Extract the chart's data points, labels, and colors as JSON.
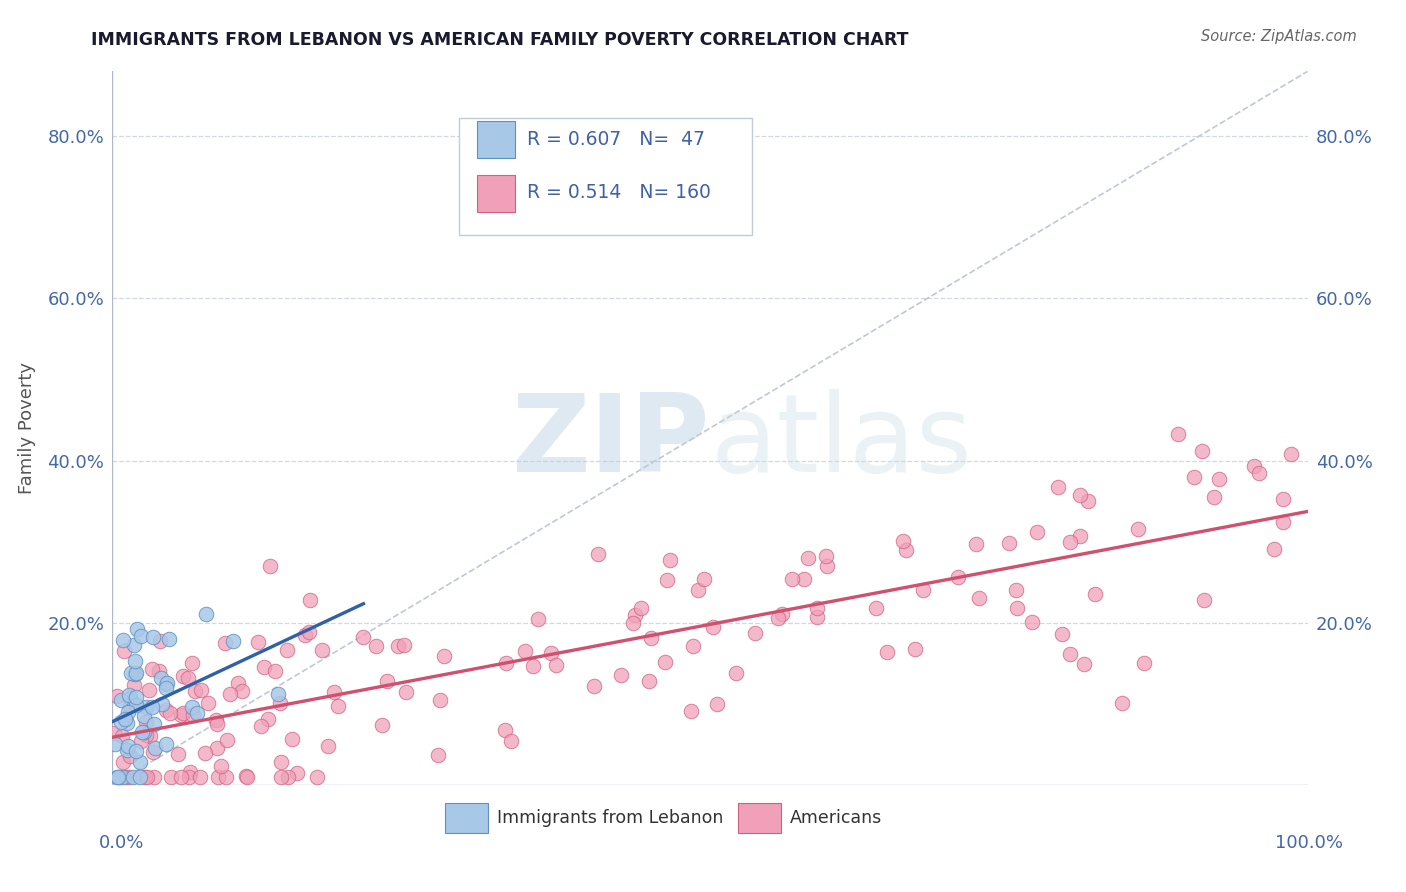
{
  "title": "IMMIGRANTS FROM LEBANON VS AMERICAN FAMILY POVERTY CORRELATION CHART",
  "source_text": "Source: ZipAtlas.com",
  "ylabel": "Family Poverty",
  "color_blue_fill": "#a8c8e8",
  "color_blue_edge": "#6090c0",
  "color_blue_line": "#3060a8",
  "color_pink_fill": "#f0a0b8",
  "color_pink_edge": "#d06080",
  "color_pink_line": "#d05070",
  "watermark_zip": "#b0c8e0",
  "watermark_atlas": "#c0d0e8",
  "legend_box_edge": "#c0ccd8",
  "grid_color": "#d0d8e0",
  "axis_color": "#b0b8c8",
  "tick_label_color": "#4468a8",
  "title_color": "#1a1a2e",
  "ylabel_color": "#555555",
  "source_color": "#666666",
  "legend_text_color": "#4060a8",
  "bottom_legend_color": "#333333",
  "xlim": [
    0,
    1
  ],
  "ylim": [
    0,
    0.88
  ],
  "yticks": [
    0.2,
    0.4,
    0.6,
    0.8
  ],
  "ytick_labels": [
    "20.0%",
    "40.0%",
    "60.0%",
    "80.0%"
  ],
  "R_blue": 0.607,
  "N_blue": 47,
  "R_pink": 0.514,
  "N_pink": 160
}
